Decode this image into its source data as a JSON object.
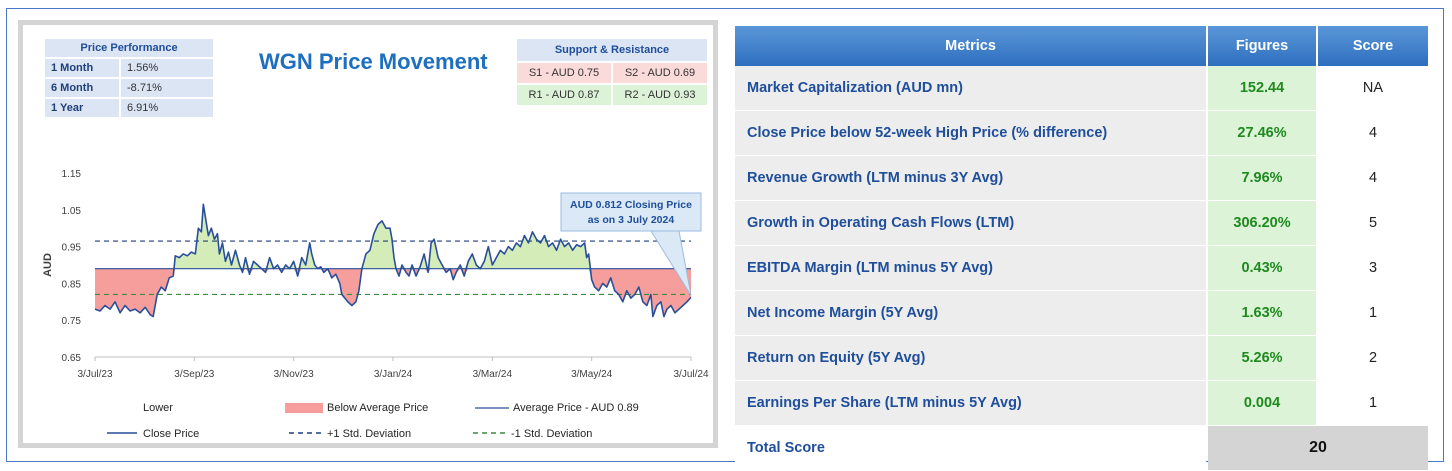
{
  "performance": {
    "header": "Price Performance",
    "rows": [
      {
        "label": "1 Month",
        "value": "1.56%"
      },
      {
        "label": "6 Month",
        "value": "-8.71%"
      },
      {
        "label": "1 Year",
        "value": "6.91%"
      }
    ]
  },
  "support_resistance": {
    "header": "Support & Resistance",
    "s1": "S1 - AUD 0.75",
    "s2": "S2 - AUD 0.69",
    "r1": "R1 - AUD 0.87",
    "r2": "R2 - AUD 0.93"
  },
  "chart_data": {
    "type": "line",
    "title": "WGN Price Movement",
    "ylabel": "AUD",
    "xlabel": "",
    "ylim": [
      0.65,
      1.15
    ],
    "yticks": [
      "0.65",
      "0.75",
      "0.85",
      "0.95",
      "1.05",
      "1.15"
    ],
    "xticks": [
      "3/Jul/23",
      "3/Sep/23",
      "3/Nov/23",
      "3/Jan/24",
      "3/Mar/24",
      "3/May/24",
      "3/Jul/24"
    ],
    "average": 0.89,
    "plus_std": 0.965,
    "minus_std": 0.82,
    "annotation": {
      "line1": "AUD 0.812 Closing Price",
      "line2": "as on 3 July 2024"
    },
    "legend": [
      "Lower",
      "Below Average Price",
      "Average Price - AUD 0.89",
      "Close Price",
      "+1 Std. Deviation",
      "-1 Std. Deviation"
    ],
    "colors": {
      "line": "#2a4f9a",
      "above": "#d3ecb8",
      "below": "#f59e9b",
      "plus_std": "#1f3f7a",
      "minus_std": "#3d8a3d"
    },
    "series": [
      {
        "name": "Close Price",
        "points": [
          [
            0,
            0.78
          ],
          [
            5,
            0.775
          ],
          [
            10,
            0.79
          ],
          [
            15,
            0.78
          ],
          [
            20,
            0.8
          ],
          [
            25,
            0.77
          ],
          [
            30,
            0.79
          ],
          [
            35,
            0.775
          ],
          [
            40,
            0.78
          ],
          [
            45,
            0.77
          ],
          [
            50,
            0.785
          ],
          [
            55,
            0.765
          ],
          [
            58,
            0.76
          ],
          [
            62,
            0.82
          ],
          [
            66,
            0.84
          ],
          [
            70,
            0.83
          ],
          [
            74,
            0.865
          ],
          [
            78,
            0.87
          ],
          [
            80,
            0.925
          ],
          [
            84,
            0.92
          ],
          [
            88,
            0.93
          ],
          [
            92,
            0.925
          ],
          [
            96,
            0.935
          ],
          [
            100,
            0.93
          ],
          [
            103,
            1.0
          ],
          [
            106,
            0.99
          ],
          [
            108,
            1.065
          ],
          [
            110,
            1.03
          ],
          [
            113,
            0.98
          ],
          [
            116,
            1.0
          ],
          [
            119,
            0.97
          ],
          [
            122,
            0.985
          ],
          [
            124,
            0.93
          ],
          [
            127,
            0.96
          ],
          [
            130,
            0.91
          ],
          [
            133,
            0.935
          ],
          [
            136,
            0.9
          ],
          [
            140,
            0.94
          ],
          [
            144,
            0.9
          ],
          [
            147,
            0.88
          ],
          [
            150,
            0.92
          ],
          [
            154,
            0.875
          ],
          [
            158,
            0.91
          ],
          [
            162,
            0.9
          ],
          [
            166,
            0.89
          ],
          [
            170,
            0.88
          ],
          [
            174,
            0.92
          ],
          [
            178,
            0.89
          ],
          [
            182,
            0.9
          ],
          [
            186,
            0.88
          ],
          [
            190,
            0.9
          ],
          [
            194,
            0.89
          ],
          [
            198,
            0.91
          ],
          [
            202,
            0.87
          ],
          [
            206,
            0.92
          ],
          [
            210,
            0.9
          ],
          [
            214,
            0.96
          ],
          [
            216,
            0.93
          ],
          [
            219,
            0.9
          ],
          [
            222,
            0.89
          ],
          [
            225,
            0.895
          ],
          [
            228,
            0.88
          ],
          [
            232,
            0.89
          ],
          [
            236,
            0.865
          ],
          [
            240,
            0.875
          ],
          [
            244,
            0.85
          ],
          [
            246,
            0.82
          ],
          [
            249,
            0.81
          ],
          [
            252,
            0.8
          ],
          [
            256,
            0.79
          ],
          [
            260,
            0.8
          ],
          [
            263,
            0.83
          ],
          [
            266,
            0.89
          ],
          [
            270,
            0.93
          ],
          [
            274,
            0.94
          ],
          [
            278,
            0.985
          ],
          [
            282,
            1.01
          ],
          [
            286,
            1.02
          ],
          [
            290,
            1.0
          ],
          [
            294,
            1.0
          ],
          [
            296,
            0.97
          ],
          [
            298,
            0.92
          ],
          [
            300,
            0.89
          ],
          [
            303,
            0.87
          ],
          [
            306,
            0.9
          ],
          [
            310,
            0.88
          ],
          [
            313,
            0.87
          ],
          [
            316,
            0.9
          ],
          [
            320,
            0.87
          ],
          [
            324,
            0.895
          ],
          [
            328,
            0.93
          ],
          [
            332,
            0.88
          ],
          [
            335,
            0.96
          ],
          [
            338,
            0.97
          ],
          [
            342,
            0.92
          ],
          [
            346,
            0.9
          ],
          [
            350,
            0.88
          ],
          [
            354,
            0.89
          ],
          [
            357,
            0.86
          ],
          [
            360,
            0.88
          ],
          [
            364,
            0.9
          ],
          [
            368,
            0.87
          ],
          [
            372,
            0.91
          ],
          [
            376,
            0.93
          ],
          [
            380,
            0.9
          ],
          [
            384,
            0.89
          ],
          [
            388,
            0.91
          ],
          [
            392,
            0.95
          ],
          [
            396,
            0.9
          ],
          [
            400,
            0.92
          ],
          [
            404,
            0.94
          ],
          [
            408,
            0.93
          ],
          [
            412,
            0.95
          ],
          [
            416,
            0.94
          ],
          [
            420,
            0.96
          ],
          [
            424,
            0.95
          ],
          [
            428,
            0.98
          ],
          [
            432,
            0.96
          ],
          [
            436,
            0.99
          ],
          [
            440,
            0.97
          ],
          [
            444,
            0.96
          ],
          [
            448,
            0.98
          ],
          [
            452,
            0.95
          ],
          [
            456,
            0.96
          ],
          [
            460,
            0.94
          ],
          [
            464,
            0.97
          ],
          [
            468,
            0.95
          ],
          [
            472,
            0.96
          ],
          [
            476,
            0.94
          ],
          [
            480,
            0.955
          ],
          [
            484,
            0.95
          ],
          [
            488,
            0.96
          ],
          [
            490,
            0.92
          ],
          [
            492,
            0.93
          ],
          [
            495,
            0.86
          ],
          [
            498,
            0.84
          ],
          [
            502,
            0.83
          ],
          [
            506,
            0.85
          ],
          [
            510,
            0.84
          ],
          [
            514,
            0.865
          ],
          [
            518,
            0.83
          ],
          [
            522,
            0.82
          ],
          [
            526,
            0.8
          ],
          [
            530,
            0.83
          ],
          [
            534,
            0.81
          ],
          [
            538,
            0.82
          ],
          [
            542,
            0.84
          ],
          [
            546,
            0.8
          ],
          [
            550,
            0.79
          ],
          [
            554,
            0.82
          ],
          [
            556,
            0.76
          ],
          [
            560,
            0.79
          ],
          [
            564,
            0.8
          ],
          [
            567,
            0.76
          ],
          [
            570,
            0.78
          ],
          [
            574,
            0.79
          ],
          [
            578,
            0.77
          ],
          [
            582,
            0.78
          ],
          [
            586,
            0.79
          ],
          [
            590,
            0.8
          ],
          [
            594,
            0.812
          ]
        ]
      }
    ],
    "x_range": [
      0,
      594
    ]
  },
  "metrics_table": {
    "headers": {
      "metric": "Metrics",
      "figure": "Figures",
      "score": "Score"
    },
    "rows": [
      {
        "metric": "Market Capitalization (AUD mn)",
        "figure": "152.44",
        "score": "NA"
      },
      {
        "metric": "Close Price below 52-week High Price (% difference)",
        "figure": "27.46%",
        "score": "4"
      },
      {
        "metric": "Revenue Growth (LTM minus 3Y Avg)",
        "figure": "7.96%",
        "score": "4"
      },
      {
        "metric": "Growth in Operating Cash Flows (LTM)",
        "figure": "306.20%",
        "score": "5"
      },
      {
        "metric": "EBITDA Margin (LTM minus 5Y Avg)",
        "figure": "0.43%",
        "score": "3"
      },
      {
        "metric": "Net Income Margin (5Y Avg)",
        "figure": "1.63%",
        "score": "1"
      },
      {
        "metric": "Return on Equity (5Y Avg)",
        "figure": "5.26%",
        "score": "2"
      },
      {
        "metric": "Earnings Per Share (LTM minus 5Y Avg)",
        "figure": "0.004",
        "score": "1"
      }
    ],
    "total_label": "Total Score",
    "total_value": "20"
  }
}
